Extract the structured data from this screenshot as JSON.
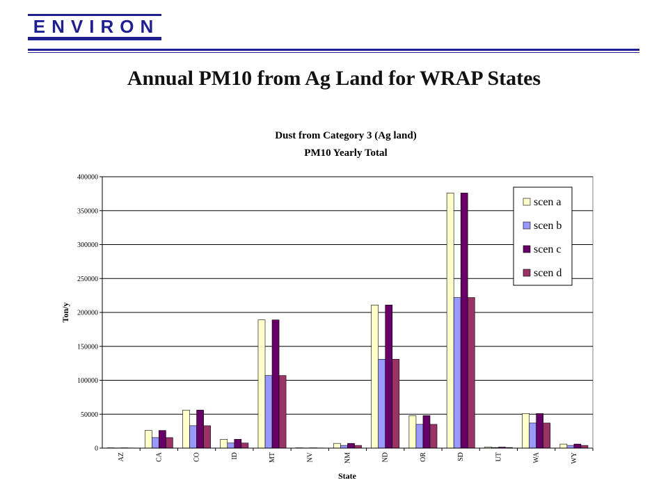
{
  "header": {
    "logo_text": "ENVIRON",
    "page_title": "Annual PM10 from Ag Land for WRAP States"
  },
  "colors": {
    "brand": "#1f1f8f",
    "plot_background": "#ffffff",
    "gridline": "#000000"
  },
  "chart_data": {
    "type": "bar",
    "title": [
      "Dust from Category 3 (Ag land)",
      "PM10 Yearly Total"
    ],
    "xlabel": "State",
    "ylabel": "Ton/y",
    "ylim": [
      0,
      400000
    ],
    "yticks": [
      0,
      50000,
      100000,
      150000,
      200000,
      250000,
      300000,
      350000,
      400000
    ],
    "grid": true,
    "legend_position": "top-right",
    "categories": [
      "AZ",
      "CA",
      "CO",
      "ID",
      "MT",
      "NV",
      "NM",
      "ND",
      "OR",
      "SD",
      "UT",
      "WA",
      "WY"
    ],
    "series": [
      {
        "name": "scen a",
        "color": "#ffffcc",
        "values": [
          500,
          26000,
          56000,
          13000,
          189000,
          500,
          7000,
          211000,
          48000,
          376000,
          1500,
          51000,
          6000
        ]
      },
      {
        "name": "scen b",
        "color": "#9999ff",
        "values": [
          300,
          15500,
          33000,
          7500,
          107000,
          300,
          4000,
          131000,
          35000,
          222000,
          900,
          37000,
          4000
        ]
      },
      {
        "name": "scen c",
        "color": "#660066",
        "values": [
          500,
          26000,
          56000,
          13000,
          189000,
          500,
          7000,
          211000,
          48000,
          376000,
          1500,
          51000,
          6000
        ]
      },
      {
        "name": "scen d",
        "color": "#993366",
        "values": [
          300,
          15500,
          33000,
          7500,
          107000,
          300,
          4000,
          131000,
          35000,
          222000,
          900,
          37000,
          4000
        ]
      }
    ]
  }
}
